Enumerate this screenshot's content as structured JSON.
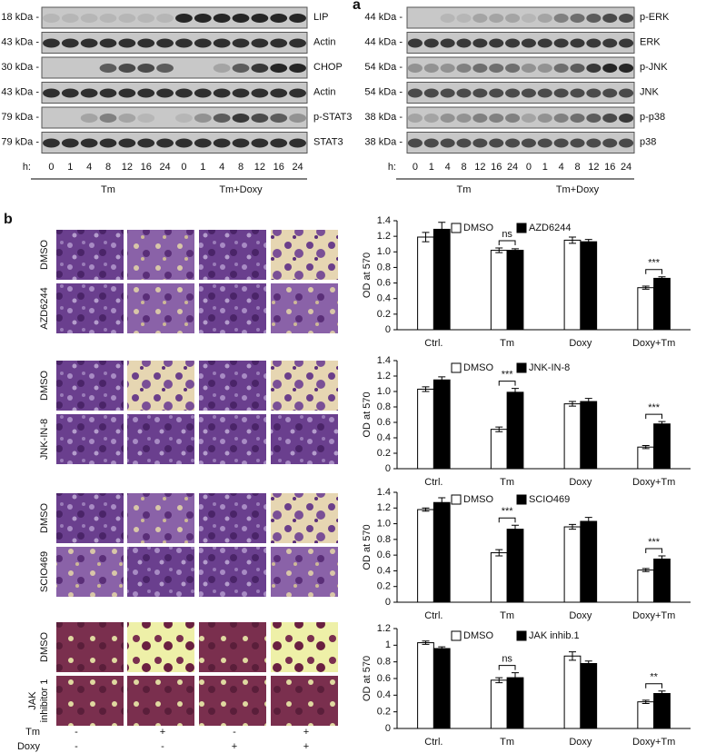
{
  "panel_a": {
    "label": "a",
    "left": {
      "rows": [
        {
          "kda": "18 kDa -",
          "name": "LIP"
        },
        {
          "kda": "43 kDa -",
          "name": "Actin"
        },
        {
          "kda": "30 kDa -",
          "name": "CHOP"
        },
        {
          "kda": "43 kDa -",
          "name": "Actin"
        },
        {
          "kda": "79 kDa -",
          "name": "p-STAT3"
        },
        {
          "kda": "79 kDa -",
          "name": "STAT3"
        }
      ],
      "time_label": "h:",
      "times": [
        "0",
        "1",
        "4",
        "8",
        "12",
        "16",
        "24"
      ],
      "groups": [
        "Tm",
        "Tm+Doxy"
      ]
    },
    "right": {
      "rows": [
        {
          "kda": "44 kDa -",
          "name": "p-ERK"
        },
        {
          "kda": "44 kDa -",
          "name": "ERK"
        },
        {
          "kda": "54 kDa -",
          "name": "p-JNK"
        },
        {
          "kda": "54 kDa -",
          "name": "JNK"
        },
        {
          "kda": "38 kDa -",
          "name": "p-p38"
        },
        {
          "kda": "38 kDa -",
          "name": "p38"
        }
      ],
      "time_label": "h:",
      "times": [
        "0",
        "1",
        "4",
        "8",
        "12",
        "16",
        "24"
      ],
      "groups": [
        "Tm",
        "Tm+Doxy"
      ]
    }
  },
  "panel_b": {
    "label": "b",
    "rows": [
      [
        [
          "DMSO"
        ],
        [
          "AZD6244"
        ]
      ],
      [
        [
          "DMSO"
        ],
        [
          "JNK-IN-8"
        ]
      ],
      [
        [
          "DMSO"
        ],
        [
          "SCIO469"
        ]
      ],
      [
        [
          "DMSO"
        ],
        [
          "JAK",
          "inhibitor 1"
        ]
      ]
    ],
    "treatments": [
      {
        "name": "Tm",
        "marks": [
          "-",
          "+",
          "-",
          "+"
        ]
      },
      {
        "name": "Doxy",
        "marks": [
          "-",
          "-",
          "+",
          "+"
        ]
      }
    ]
  },
  "chart_data": [
    {
      "type": "bar",
      "y_label": "OD at 570",
      "categories": [
        "Ctrl.",
        "Tm",
        "Doxy",
        "Doxy+Tm"
      ],
      "ylim": [
        0,
        1.4
      ],
      "yticks": [
        0,
        0.2,
        0.4,
        0.6,
        0.8,
        {
          "value": 1,
          "label": "1.0"
        },
        1.2,
        1.4
      ],
      "series": [
        {
          "name": "DMSO",
          "color": "#ffffff",
          "values": [
            1.19,
            1.02,
            1.15,
            0.54
          ],
          "errors": [
            0.06,
            0.03,
            0.04,
            0.02
          ]
        },
        {
          "name": "AZD6244",
          "color": "#000000",
          "values": [
            1.29,
            1.02,
            1.13,
            0.66
          ],
          "errors": [
            0.09,
            0.02,
            0.03,
            0.02
          ]
        }
      ],
      "annotations": [
        {
          "text": "ns",
          "category": "Tm"
        },
        {
          "text": "***",
          "category": "Doxy+Tm"
        }
      ]
    },
    {
      "type": "bar",
      "y_label": "OD at 570",
      "categories": [
        "Ctrl.",
        "Tm",
        "Doxy",
        "Doxy+Tm"
      ],
      "ylim": [
        0,
        1.4
      ],
      "yticks": [
        0,
        0.2,
        0.4,
        0.6,
        0.8,
        {
          "value": 1,
          "label": "1.0"
        },
        1.2,
        1.4
      ],
      "series": [
        {
          "name": "DMSO",
          "color": "#ffffff",
          "values": [
            1.03,
            0.51,
            0.84,
            0.28
          ],
          "errors": [
            0.03,
            0.03,
            0.03,
            0.02
          ]
        },
        {
          "name": "JNK-IN-8",
          "color": "#000000",
          "values": [
            1.15,
            0.99,
            0.87,
            0.58
          ],
          "errors": [
            0.04,
            0.05,
            0.04,
            0.03
          ]
        }
      ],
      "annotations": [
        {
          "text": "***",
          "category": "Tm"
        },
        {
          "text": "***",
          "category": "Doxy+Tm"
        }
      ]
    },
    {
      "type": "bar",
      "y_label": "OD at 570",
      "categories": [
        "Ctrl.",
        "Tm",
        "Doxy",
        "Doxy+Tm"
      ],
      "ylim": [
        0,
        1.4
      ],
      "yticks": [
        0,
        0.2,
        0.4,
        0.6,
        0.8,
        {
          "value": 1,
          "label": "1.0"
        },
        1.2,
        1.4
      ],
      "series": [
        {
          "name": "DMSO",
          "color": "#ffffff",
          "values": [
            1.18,
            0.63,
            0.96,
            0.41
          ],
          "errors": [
            0.02,
            0.04,
            0.03,
            0.02
          ]
        },
        {
          "name": "SCIO469",
          "color": "#000000",
          "values": [
            1.27,
            0.93,
            1.03,
            0.55
          ],
          "errors": [
            0.06,
            0.05,
            0.05,
            0.04
          ]
        }
      ],
      "annotations": [
        {
          "text": "***",
          "category": "Tm"
        },
        {
          "text": "***",
          "category": "Doxy+Tm"
        }
      ]
    },
    {
      "type": "bar",
      "y_label": "OD at 570",
      "categories": [
        "Ctrl.",
        "Tm",
        "Doxy",
        "Doxy+Tm"
      ],
      "ylim": [
        0,
        1.2
      ],
      "yticks": [
        0,
        0.2,
        0.4,
        0.6,
        0.8,
        1,
        1.2
      ],
      "series": [
        {
          "name": "DMSO",
          "color": "#ffffff",
          "values": [
            1.03,
            0.58,
            0.87,
            0.32
          ],
          "errors": [
            0.02,
            0.03,
            0.05,
            0.02
          ]
        },
        {
          "name": "JAK inhib.1",
          "color": "#000000",
          "values": [
            0.96,
            0.61,
            0.78,
            0.42
          ],
          "errors": [
            0.02,
            0.06,
            0.03,
            0.03
          ]
        }
      ],
      "annotations": [
        {
          "text": "ns",
          "category": "Tm"
        },
        {
          "text": "**",
          "category": "Doxy+Tm"
        }
      ]
    }
  ]
}
